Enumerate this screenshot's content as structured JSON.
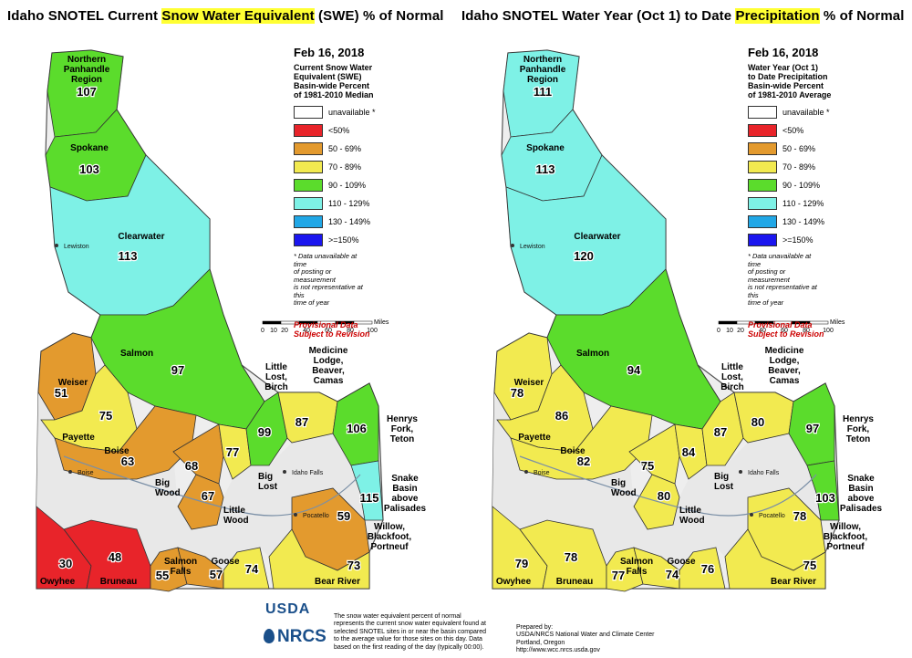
{
  "titles": {
    "left": {
      "pre": "Idaho SNOTEL Current ",
      "highlight": "Snow Water Equivalent",
      "post": " (SWE) % of Normal"
    },
    "right": {
      "pre": "Idaho SNOTEL Water Year (Oct 1) to Date ",
      "highlight": "Precipitation",
      "post": " % of Normal"
    }
  },
  "legend_left": {
    "date": "Feb 16, 2018",
    "desc": [
      "Current Snow Water",
      "Equivalent (SWE)",
      "Basin-wide Percent",
      "of 1981-2010 Median"
    ]
  },
  "legend_right": {
    "date": "Feb 16, 2018",
    "desc": [
      "Water Year (Oct 1)",
      "to Date Precipitation",
      "Basin-wide Percent",
      "of 1981-2010 Average"
    ]
  },
  "legend_classes": [
    {
      "label": "unavailable *",
      "color": "#ffffff"
    },
    {
      "label": "<50%",
      "color": "#e8242a"
    },
    {
      "label": "50 - 69%",
      "color": "#e39a2e"
    },
    {
      "label": "70 - 89%",
      "color": "#f2ea50"
    },
    {
      "label": "90 - 109%",
      "color": "#5bdc2c"
    },
    {
      "label": "110 - 129%",
      "color": "#7ef1e6"
    },
    {
      "label": "130 - 149%",
      "color": "#21a7e6"
    },
    {
      "label": ">=150%",
      "color": "#1b16ef"
    }
  ],
  "legend_note": [
    "* Data unavailable at time",
    "of posting or measurement",
    "is not representative at this",
    "time of year"
  ],
  "provisional": [
    "Provisional Data",
    "Subject to Revision"
  ],
  "scale": {
    "ticks": [
      "0",
      "10",
      "20",
      "40",
      "60",
      "80",
      "100"
    ],
    "unit": "Miles"
  },
  "places": {
    "lewiston": "Lewiston",
    "boise": "Boise",
    "idaho_falls": "Idaho Falls",
    "pocatello": "Pocatello"
  },
  "swe": {
    "northern_panhandle": {
      "name": [
        "Northern",
        "Panhandle",
        "Region"
      ],
      "value": "107",
      "color": "#5bdc2c"
    },
    "spokane": {
      "name": [
        "Spokane"
      ],
      "value": "103",
      "color": "#5bdc2c"
    },
    "clearwater": {
      "name": [
        "Clearwater"
      ],
      "value": "113",
      "color": "#7ef1e6"
    },
    "salmon": {
      "name": [
        "Salmon"
      ],
      "value": "97",
      "color": "#5bdc2c"
    },
    "weiser": {
      "name": [
        "Weiser"
      ],
      "value": "51",
      "color": "#e39a2e"
    },
    "payette": {
      "name": [
        "Payette"
      ],
      "value": "75",
      "color": "#f2ea50"
    },
    "boise": {
      "name": [
        "Boise"
      ],
      "value": "63",
      "color": "#e39a2e"
    },
    "big_wood": {
      "name": [
        "Big",
        "Wood"
      ],
      "value": "68",
      "color": "#e39a2e"
    },
    "little_wood": {
      "name": [
        "Little",
        "Wood"
      ],
      "value": "67",
      "color": "#e39a2e"
    },
    "big_lost": {
      "name": [
        "Big",
        "Lost"
      ],
      "value": "77",
      "color": "#f2ea50"
    },
    "little_lost_birch": {
      "name": [
        "Little",
        "Lost,",
        "Birch"
      ],
      "value": "99",
      "color": "#5bdc2c"
    },
    "medicine_lodge": {
      "name": [
        "Medicine",
        "Lodge,",
        "Beaver,",
        "Camas"
      ],
      "value": "87",
      "color": "#f2ea50"
    },
    "henrys_fork": {
      "name": [
        "Henrys",
        "Fork,",
        "Teton"
      ],
      "value": "106",
      "color": "#5bdc2c"
    },
    "snake_above": {
      "name": [
        "Snake",
        "Basin",
        "above",
        "Palisades"
      ],
      "value": "115",
      "color": "#7ef1e6"
    },
    "willow": {
      "name": [
        "Willow,",
        "Blackfoot,",
        "Portneuf"
      ],
      "value": "59",
      "color": "#e39a2e"
    },
    "owyhee": {
      "name": [
        "Owyhee"
      ],
      "value": "30",
      "color": "#e8242a"
    },
    "bruneau": {
      "name": [
        "Bruneau"
      ],
      "value": "48",
      "color": "#e8242a"
    },
    "salmon_falls": {
      "name": [
        "Salmon",
        "Falls"
      ],
      "value": "55",
      "color": "#e39a2e"
    },
    "goose": {
      "name": [
        "Goose"
      ],
      "value": "57",
      "color": "#e39a2e"
    },
    "raft": {
      "name": [],
      "value": "74",
      "color": "#f2ea50"
    },
    "bear_river": {
      "name": [
        "Bear River"
      ],
      "value": "73",
      "color": "#f2ea50"
    }
  },
  "precip": {
    "northern_panhandle": {
      "name": [
        "Northern",
        "Panhandle",
        "Region"
      ],
      "value": "111",
      "color": "#7ef1e6"
    },
    "spokane": {
      "name": [
        "Spokane"
      ],
      "value": "113",
      "color": "#7ef1e6"
    },
    "clearwater": {
      "name": [
        "Clearwater"
      ],
      "value": "120",
      "color": "#7ef1e6"
    },
    "salmon": {
      "name": [
        "Salmon"
      ],
      "value": "94",
      "color": "#5bdc2c"
    },
    "weiser": {
      "name": [
        "Weiser"
      ],
      "value": "78",
      "color": "#f2ea50"
    },
    "payette": {
      "name": [
        "Payette"
      ],
      "value": "86",
      "color": "#f2ea50"
    },
    "boise": {
      "name": [
        "Boise"
      ],
      "value": "82",
      "color": "#f2ea50"
    },
    "big_wood": {
      "name": [
        "Big",
        "Wood"
      ],
      "value": "75",
      "color": "#f2ea50"
    },
    "little_wood": {
      "name": [
        "Little",
        "Wood"
      ],
      "value": "80",
      "color": "#f2ea50"
    },
    "big_lost": {
      "name": [
        "Big",
        "Lost"
      ],
      "value": "84",
      "color": "#f2ea50"
    },
    "little_lost_birch": {
      "name": [
        "Little",
        "Lost,",
        "Birch"
      ],
      "value": "87",
      "color": "#f2ea50"
    },
    "medicine_lodge": {
      "name": [
        "Medicine",
        "Lodge,",
        "Beaver,",
        "Camas"
      ],
      "value": "80",
      "color": "#f2ea50"
    },
    "henrys_fork": {
      "name": [
        "Henrys",
        "Fork,",
        "Teton"
      ],
      "value": "97",
      "color": "#5bdc2c"
    },
    "snake_above": {
      "name": [
        "Snake",
        "Basin",
        "above",
        "Palisades"
      ],
      "value": "103",
      "color": "#5bdc2c"
    },
    "willow": {
      "name": [
        "Willow,",
        "Blackfoot,",
        "Portneuf"
      ],
      "value": "78",
      "color": "#f2ea50"
    },
    "owyhee": {
      "name": [
        "Owyhee"
      ],
      "value": "79",
      "color": "#f2ea50"
    },
    "bruneau": {
      "name": [
        "Bruneau"
      ],
      "value": "78",
      "color": "#f2ea50"
    },
    "salmon_falls": {
      "name": [
        "Salmon",
        "Falls"
      ],
      "value": "77",
      "color": "#f2ea50"
    },
    "goose": {
      "name": [
        "Goose"
      ],
      "value": "74",
      "color": "#f2ea50"
    },
    "raft": {
      "name": [],
      "value": "76",
      "color": "#f2ea50"
    },
    "bear_river": {
      "name": [
        "Bear River"
      ],
      "value": "75",
      "color": "#f2ea50"
    }
  },
  "footer": {
    "logo_top": "USDA",
    "logo_bottom": "NRCS",
    "explanation": [
      "The snow water equivalent percent of normal",
      "represents the current snow water equivalent found at",
      "selected SNOTEL sites in or near the basin compared",
      "to the average value for those sites on this day. Data",
      "based on the first reading of the day (typically 00:00)."
    ],
    "prepared": [
      "Prepared by:",
      "USDA/NRCS National Water and Climate Center",
      "Portland, Oregon",
      "http://www.wcc.nrcs.usda.gov"
    ]
  }
}
